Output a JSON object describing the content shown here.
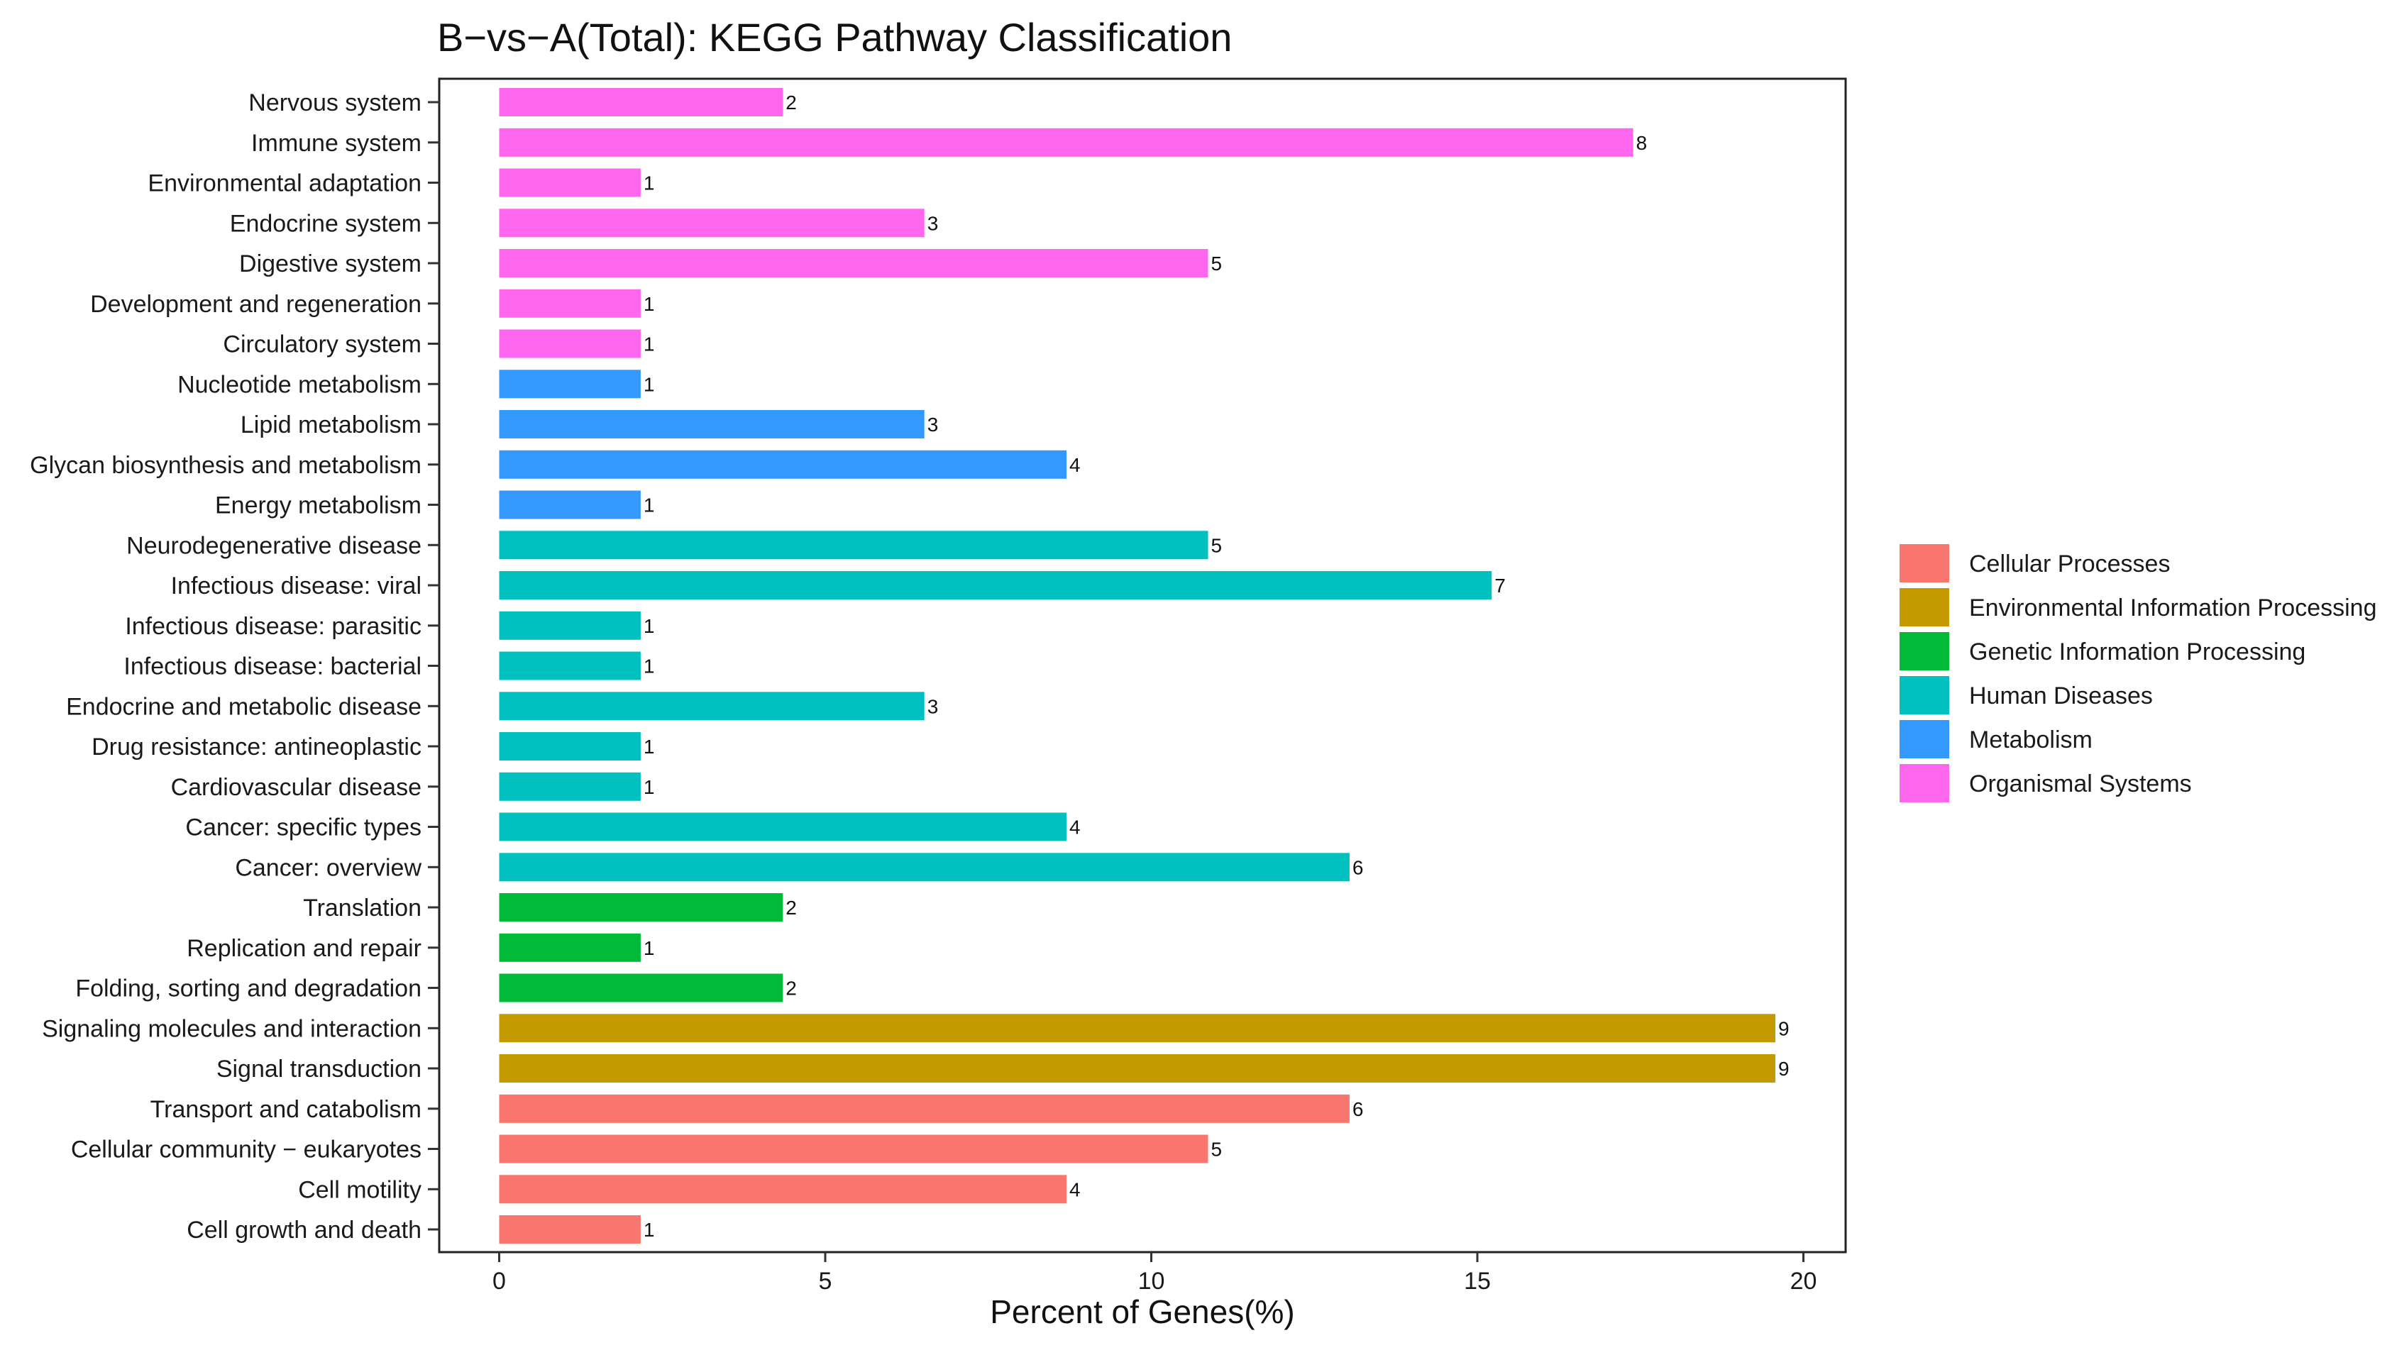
{
  "chart_data": {
    "type": "bar",
    "orientation": "horizontal",
    "title": "B−vs−A(Total): KEGG Pathway Classification",
    "xlabel": "Percent of Genes(%)",
    "ylabel": "",
    "xlim": [
      0,
      20.6
    ],
    "xticks": [
      0,
      5,
      10,
      15,
      20
    ],
    "grid": false,
    "legend_position": "right",
    "categories": [
      "Nervous system",
      "Immune system",
      "Environmental adaptation",
      "Endocrine system",
      "Digestive system",
      "Development and regeneration",
      "Circulatory system",
      "Nucleotide metabolism",
      "Lipid metabolism",
      "Glycan biosynthesis and metabolism",
      "Energy metabolism",
      "Neurodegenerative disease",
      "Infectious disease: viral",
      "Infectious disease: parasitic",
      "Infectious disease: bacterial",
      "Endocrine and metabolic disease",
      "Drug resistance: antineoplastic",
      "Cardiovascular disease",
      "Cancer: specific types",
      "Cancer: overview",
      "Translation",
      "Replication and repair",
      "Folding, sorting and degradation",
      "Signaling molecules and interaction",
      "Signal transduction",
      "Transport and catabolism",
      "Cellular community − eukaryotes",
      "Cell motility",
      "Cell growth and death"
    ],
    "values": [
      4.35,
      17.39,
      2.17,
      6.52,
      10.87,
      2.17,
      2.17,
      2.17,
      6.52,
      8.7,
      2.17,
      10.87,
      15.22,
      2.17,
      2.17,
      6.52,
      2.17,
      2.17,
      8.7,
      13.04,
      4.35,
      2.17,
      4.35,
      19.57,
      19.57,
      13.04,
      10.87,
      8.7,
      2.17
    ],
    "counts": [
      "2",
      "8",
      "1",
      "3",
      "5",
      "1",
      "1",
      "1",
      "3",
      "4",
      "1",
      "5",
      "7",
      "1",
      "1",
      "3",
      "1",
      "1",
      "4",
      "6",
      "2",
      "1",
      "2",
      "9",
      "9",
      "6",
      "5",
      "4",
      "1"
    ],
    "groups": [
      "Organismal Systems",
      "Organismal Systems",
      "Organismal Systems",
      "Organismal Systems",
      "Organismal Systems",
      "Organismal Systems",
      "Organismal Systems",
      "Metabolism",
      "Metabolism",
      "Metabolism",
      "Metabolism",
      "Human Diseases",
      "Human Diseases",
      "Human Diseases",
      "Human Diseases",
      "Human Diseases",
      "Human Diseases",
      "Human Diseases",
      "Human Diseases",
      "Human Diseases",
      "Genetic Information Processing",
      "Genetic Information Processing",
      "Genetic Information Processing",
      "Environmental Information Processing",
      "Environmental Information Processing",
      "Cellular Processes",
      "Cellular Processes",
      "Cellular Processes",
      "Cellular Processes"
    ],
    "legend": [
      {
        "name": "Cellular Processes",
        "color": "#F8766D"
      },
      {
        "name": "Environmental Information Processing",
        "color": "#C49A00"
      },
      {
        "name": "Genetic Information Processing",
        "color": "#00BA38"
      },
      {
        "name": "Human Diseases",
        "color": "#00C0C0"
      },
      {
        "name": "Metabolism",
        "color": "#3399FF"
      },
      {
        "name": "Organismal Systems",
        "color": "#FF66EE"
      }
    ]
  }
}
